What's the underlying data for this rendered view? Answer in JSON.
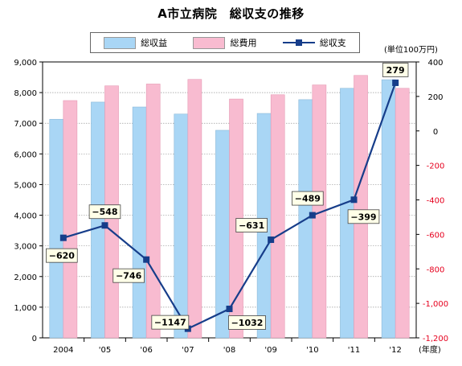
{
  "chart_data": {
    "type": "bar",
    "title": "A市立病院　総収支の推移",
    "unit_label": "(単位100万円)",
    "xunit_label": "(年度)",
    "categories": [
      "2004",
      "'05",
      "'06",
      "'07",
      "'08",
      "'09",
      "'10",
      "'11",
      "'12"
    ],
    "y_left": {
      "range": [
        0,
        9000
      ],
      "ticks": [
        "0",
        "1,000",
        "2,000",
        "3,000",
        "4,000",
        "5,000",
        "6,000",
        "7,000",
        "8,000",
        "9,000"
      ]
    },
    "y_right": {
      "range": [
        -1200,
        400
      ],
      "ticks": [
        "400",
        "200",
        "0",
        "-200",
        "-400",
        "-600",
        "-800",
        "-1,000",
        "-1,200"
      ]
    },
    "series": [
      {
        "name": "総収益",
        "kind": "bar",
        "axis": "left",
        "color": "#a9d6f5",
        "values": [
          7130,
          7690,
          7530,
          7300,
          6770,
          7320,
          7770,
          8140,
          8420
        ]
      },
      {
        "name": "総費用",
        "kind": "bar",
        "axis": "left",
        "color": "#f8bbd0",
        "values": [
          7740,
          8220,
          8280,
          8430,
          7790,
          7930,
          8250,
          8560,
          8140
        ]
      },
      {
        "name": "総収支",
        "kind": "line",
        "axis": "right",
        "color": "#163d8a",
        "values": [
          -620,
          -548,
          -746,
          -1147,
          -1032,
          -631,
          -489,
          -399,
          279
        ]
      }
    ],
    "data_labels": [
      "−620",
      "−548",
      "−746",
      "−1147",
      "−1032",
      "−631",
      "−489",
      "−399",
      "279"
    ],
    "grid": true,
    "legend": "top"
  }
}
